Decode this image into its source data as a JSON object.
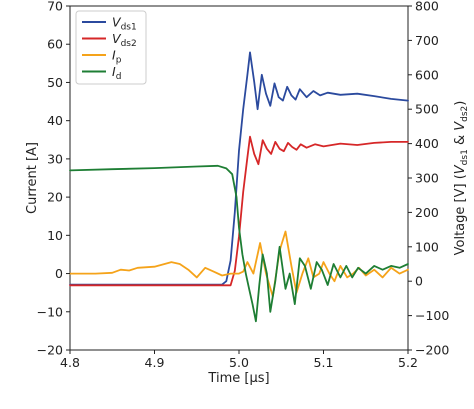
{
  "chart_data": {
    "type": "line",
    "xlabel": "Time [µs]",
    "ylabel_left": "Current [A]",
    "ylabel_right_prefix": "Voltage [V] (",
    "ylabel_right_v1": "V",
    "ylabel_right_v1_sub": "ds1",
    "ylabel_right_amp": " & ",
    "ylabel_right_v2": "V",
    "ylabel_right_v2_sub": "ds2",
    "ylabel_right_suffix": ")",
    "xlim": [
      4.8,
      5.2
    ],
    "ylim_left": [
      -20,
      70
    ],
    "ylim_right": [
      -200,
      800
    ],
    "x_ticks": [
      4.8,
      4.9,
      5.0,
      5.1,
      5.2
    ],
    "x_tick_labels": [
      "4.8",
      "4.9",
      "5.0",
      "5.1",
      "5.2"
    ],
    "y_left_ticks": [
      -20,
      -10,
      0,
      10,
      20,
      30,
      40,
      50,
      60,
      70
    ],
    "y_left_tick_labels": [
      "−20",
      "−10",
      "0",
      "10",
      "20",
      "30",
      "40",
      "50",
      "60",
      "70"
    ],
    "y_right_ticks": [
      -200,
      -100,
      0,
      100,
      200,
      300,
      400,
      500,
      600,
      700,
      800
    ],
    "y_right_tick_labels": [
      "−200",
      "−100",
      "0",
      "100",
      "200",
      "300",
      "400",
      "500",
      "600",
      "700",
      "800"
    ],
    "grid": false,
    "legend_position": "top-left",
    "series": [
      {
        "key": "vds1",
        "legend_main": "V",
        "legend_sub": "ds1",
        "axis": "right",
        "color": "#2b4a9e",
        "points": [
          [
            4.8,
            -10
          ],
          [
            4.98,
            -10
          ],
          [
            4.985,
            0
          ],
          [
            4.99,
            60
          ],
          [
            4.995,
            200
          ],
          [
            5.0,
            380
          ],
          [
            5.005,
            500
          ],
          [
            5.01,
            600
          ],
          [
            5.013,
            665
          ],
          [
            5.018,
            580
          ],
          [
            5.022,
            500
          ],
          [
            5.027,
            600
          ],
          [
            5.032,
            545
          ],
          [
            5.037,
            510
          ],
          [
            5.042,
            575
          ],
          [
            5.047,
            535
          ],
          [
            5.052,
            525
          ],
          [
            5.057,
            565
          ],
          [
            5.062,
            540
          ],
          [
            5.067,
            528
          ],
          [
            5.072,
            558
          ],
          [
            5.08,
            535
          ],
          [
            5.088,
            553
          ],
          [
            5.096,
            540
          ],
          [
            5.105,
            548
          ],
          [
            5.12,
            542
          ],
          [
            5.14,
            545
          ],
          [
            5.16,
            538
          ],
          [
            5.18,
            530
          ],
          [
            5.2,
            525
          ]
        ]
      },
      {
        "key": "vds2",
        "legend_main": "V",
        "legend_sub": "ds2",
        "axis": "right",
        "color": "#d62728",
        "points": [
          [
            4.8,
            -12
          ],
          [
            4.99,
            -12
          ],
          [
            4.995,
            30
          ],
          [
            5.0,
            130
          ],
          [
            5.005,
            260
          ],
          [
            5.01,
            360
          ],
          [
            5.013,
            420
          ],
          [
            5.018,
            370
          ],
          [
            5.023,
            340
          ],
          [
            5.028,
            410
          ],
          [
            5.033,
            385
          ],
          [
            5.038,
            370
          ],
          [
            5.043,
            405
          ],
          [
            5.048,
            385
          ],
          [
            5.053,
            378
          ],
          [
            5.058,
            402
          ],
          [
            5.063,
            390
          ],
          [
            5.068,
            382
          ],
          [
            5.073,
            398
          ],
          [
            5.08,
            388
          ],
          [
            5.09,
            398
          ],
          [
            5.1,
            392
          ],
          [
            5.12,
            400
          ],
          [
            5.14,
            396
          ],
          [
            5.16,
            402
          ],
          [
            5.18,
            405
          ],
          [
            5.2,
            405
          ]
        ]
      },
      {
        "key": "ip",
        "legend_main": "I",
        "legend_sub": "p",
        "axis": "left",
        "color": "#f5a31a",
        "points": [
          [
            4.8,
            0
          ],
          [
            4.83,
            0
          ],
          [
            4.85,
            0.2
          ],
          [
            4.86,
            1
          ],
          [
            4.87,
            0.8
          ],
          [
            4.88,
            1.5
          ],
          [
            4.9,
            1.8
          ],
          [
            4.92,
            3
          ],
          [
            4.93,
            2.5
          ],
          [
            4.94,
            1
          ],
          [
            4.95,
            -1
          ],
          [
            4.96,
            1.5
          ],
          [
            4.97,
            0.5
          ],
          [
            4.98,
            -0.5
          ],
          [
            4.99,
            0
          ],
          [
            5.0,
            0
          ],
          [
            5.005,
            0.5
          ],
          [
            5.01,
            3
          ],
          [
            5.017,
            0
          ],
          [
            5.025,
            8
          ],
          [
            5.032,
            0
          ],
          [
            5.04,
            -6
          ],
          [
            5.048,
            6
          ],
          [
            5.055,
            11
          ],
          [
            5.062,
            2
          ],
          [
            5.068,
            -5
          ],
          [
            5.075,
            0
          ],
          [
            5.082,
            4
          ],
          [
            5.088,
            -1
          ],
          [
            5.095,
            0
          ],
          [
            5.1,
            3
          ],
          [
            5.107,
            0
          ],
          [
            5.113,
            -2
          ],
          [
            5.12,
            2
          ],
          [
            5.128,
            -1
          ],
          [
            5.135,
            0
          ],
          [
            5.142,
            1.5
          ],
          [
            5.15,
            -0.5
          ],
          [
            5.16,
            1
          ],
          [
            5.17,
            -1
          ],
          [
            5.18,
            1.5
          ],
          [
            5.19,
            0
          ],
          [
            5.2,
            1
          ]
        ]
      },
      {
        "key": "id",
        "legend_main": "I",
        "legend_sub": "d",
        "axis": "left",
        "color": "#1e7e34",
        "points": [
          [
            4.8,
            27
          ],
          [
            4.85,
            27.3
          ],
          [
            4.9,
            27.6
          ],
          [
            4.95,
            28
          ],
          [
            4.975,
            28.2
          ],
          [
            4.985,
            27.5
          ],
          [
            4.992,
            26
          ],
          [
            4.997,
            20
          ],
          [
            5.0,
            12
          ],
          [
            5.004,
            5
          ],
          [
            5.008,
            0
          ],
          [
            5.012,
            -4
          ],
          [
            5.016,
            -8
          ],
          [
            5.02,
            -12.5
          ],
          [
            5.024,
            -3
          ],
          [
            5.028,
            5
          ],
          [
            5.033,
            0
          ],
          [
            5.037,
            -10
          ],
          [
            5.043,
            -2
          ],
          [
            5.048,
            7
          ],
          [
            5.055,
            -4
          ],
          [
            5.06,
            0
          ],
          [
            5.066,
            -8
          ],
          [
            5.072,
            4
          ],
          [
            5.078,
            2
          ],
          [
            5.085,
            -4
          ],
          [
            5.092,
            3
          ],
          [
            5.098,
            1
          ],
          [
            5.105,
            -3
          ],
          [
            5.112,
            2.5
          ],
          [
            5.12,
            -1
          ],
          [
            5.127,
            2
          ],
          [
            5.134,
            -1
          ],
          [
            5.141,
            1.5
          ],
          [
            5.15,
            0
          ],
          [
            5.16,
            2
          ],
          [
            5.17,
            1
          ],
          [
            5.18,
            2
          ],
          [
            5.19,
            1.5
          ],
          [
            5.2,
            2.5
          ]
        ]
      }
    ]
  }
}
